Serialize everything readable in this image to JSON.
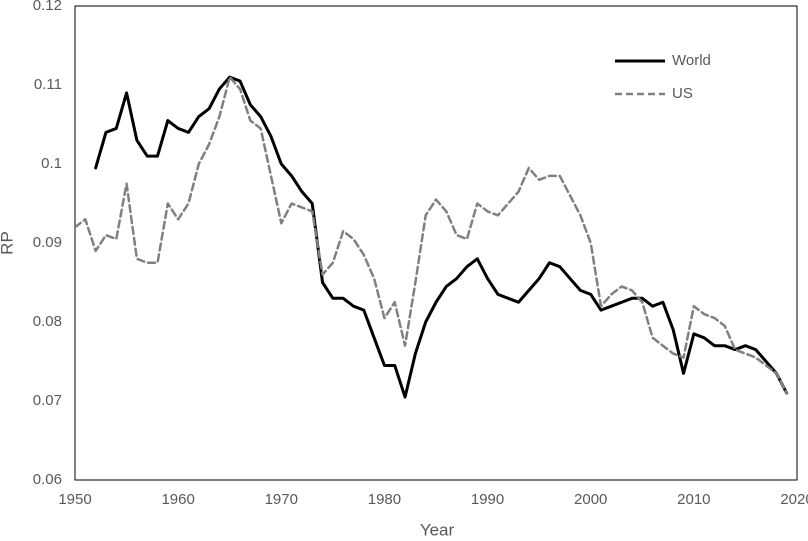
{
  "chart_data": {
    "type": "line",
    "x_label": "Year",
    "y_label": "RP",
    "x": [
      1950,
      1951,
      1952,
      1953,
      1954,
      1955,
      1956,
      1957,
      1958,
      1959,
      1960,
      1961,
      1962,
      1963,
      1964,
      1965,
      1966,
      1967,
      1968,
      1969,
      1970,
      1971,
      1972,
      1973,
      1974,
      1975,
      1976,
      1977,
      1978,
      1979,
      1980,
      1981,
      1982,
      1983,
      1984,
      1985,
      1986,
      1987,
      1988,
      1989,
      1990,
      1991,
      1992,
      1993,
      1994,
      1995,
      1996,
      1997,
      1998,
      1999,
      2000,
      2001,
      2002,
      2003,
      2004,
      2005,
      2006,
      2007,
      2008,
      2009,
      2010,
      2011,
      2012,
      2013,
      2014,
      2015,
      2016,
      2017,
      2018,
      2019
    ],
    "series": [
      {
        "name": "World",
        "color": "#000000",
        "dash": "solid",
        "values": [
          null,
          null,
          0.0995,
          0.104,
          0.1045,
          0.109,
          0.103,
          0.101,
          0.101,
          0.1055,
          0.1045,
          0.104,
          0.106,
          0.107,
          0.1095,
          0.111,
          0.1105,
          0.1075,
          0.106,
          0.1035,
          0.1,
          0.0985,
          0.0965,
          0.095,
          0.085,
          0.083,
          0.083,
          0.082,
          0.0815,
          0.078,
          0.0745,
          0.0745,
          0.0705,
          0.076,
          0.08,
          0.0825,
          0.0845,
          0.0855,
          0.087,
          0.088,
          0.0855,
          0.0835,
          0.083,
          0.0825,
          0.084,
          0.0855,
          0.0875,
          0.087,
          0.0855,
          0.084,
          0.0835,
          0.0815,
          0.082,
          0.0825,
          0.083,
          0.083,
          0.082,
          0.0825,
          0.079,
          0.0735,
          0.0785,
          0.078,
          0.077,
          0.077,
          0.0765,
          0.077,
          0.0765,
          0.075,
          0.0735,
          0.071
        ]
      },
      {
        "name": "US",
        "color": "#808080",
        "dash": "dashed",
        "values": [
          0.092,
          0.093,
          0.089,
          0.091,
          0.0905,
          0.0975,
          0.088,
          0.0875,
          0.0875,
          0.095,
          0.093,
          0.095,
          0.1,
          0.1025,
          0.106,
          0.111,
          0.1095,
          0.1055,
          0.1045,
          0.0985,
          0.0925,
          0.095,
          0.0945,
          0.094,
          0.086,
          0.0875,
          0.0915,
          0.0905,
          0.0885,
          0.0855,
          0.0805,
          0.0825,
          0.077,
          0.085,
          0.0935,
          0.0955,
          0.094,
          0.091,
          0.0905,
          0.095,
          0.094,
          0.0935,
          0.095,
          0.0965,
          0.0995,
          0.098,
          0.0985,
          0.0985,
          0.096,
          0.0935,
          0.09,
          0.082,
          0.0835,
          0.0845,
          0.084,
          0.0825,
          0.078,
          0.077,
          0.076,
          0.0755,
          0.082,
          0.081,
          0.0805,
          0.0795,
          0.0765,
          0.076,
          0.0755,
          0.0745,
          0.0735,
          0.071
        ]
      }
    ],
    "xlim": [
      1950,
      2020
    ],
    "xticks": [
      1950,
      1960,
      1970,
      1980,
      1990,
      2000,
      2010,
      2020
    ],
    "ylim": [
      0.06,
      0.12
    ],
    "yticks": [
      0.06,
      0.07,
      0.08,
      0.09,
      0.1,
      0.11,
      0.12
    ],
    "grid": false,
    "legend": "upper right"
  }
}
